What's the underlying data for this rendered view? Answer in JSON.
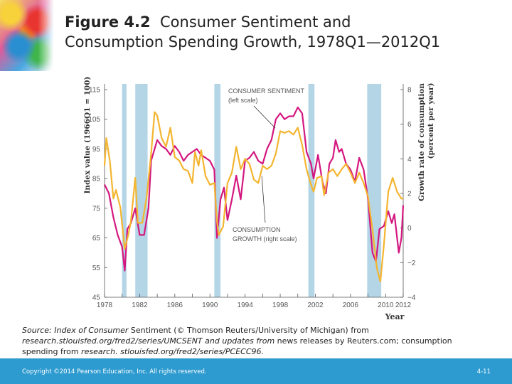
{
  "slide": {
    "title_bold": "Figure 4.2",
    "title_line1": "Consumer Sentiment and",
    "title_line2": "Consumption Spending Growth, 1978Q1—2012Q1"
  },
  "source": {
    "part1": "Source: Index of Consumer",
    "part2": " Sentiment (© Thomson Reuters/University of Michigan) from",
    "part3": "research.stlouisfed.org/fred2/series/UMCSENT and updates from",
    "part4": " news releases by Reuters.com; consumption",
    "part5": "spending from ",
    "part6": "research. stlouisfed.org/fred2/series/PCECC96."
  },
  "footer": {
    "copyright": "Copyright ©2014 Pearson Education, Inc. All rights reserved.",
    "page": "4-11"
  },
  "colors": {
    "sentiment": "#d4177f",
    "consumption": "#f4b530",
    "recession": "#b3d5e6",
    "footer": "#2e9bd0"
  },
  "chart_data": {
    "type": "line",
    "xlabel": "Year",
    "ylabel_left": "Index value (1966Q1 = 100)",
    "ylabel_right_line1": "Growth rate of consumption",
    "ylabel_right_line2": "(percent per year)",
    "xlim": [
      1978,
      2012
    ],
    "ylim_left": [
      45,
      115
    ],
    "ylim_right": [
      -4,
      8
    ],
    "x_ticks": [
      "1978",
      "1982",
      "1986",
      "1990",
      "1994",
      "1998",
      "2002",
      "2006",
      "2010",
      "2012"
    ],
    "y_ticks_left": [
      "115",
      "105",
      "95",
      "85",
      "75",
      "65",
      "55",
      "45"
    ],
    "y_ticks_right": [
      "8",
      "6",
      "4",
      "2",
      "0",
      "−2",
      "−4"
    ],
    "grid": false,
    "recessions": [
      [
        1980.0,
        1980.5
      ],
      [
        1981.5,
        1982.9
      ],
      [
        1990.5,
        1991.2
      ],
      [
        2001.2,
        2001.9
      ],
      [
        2007.9,
        2009.5
      ]
    ],
    "annotations": {
      "sentiment_line1": "CONSUMER SENTIMENT",
      "sentiment_line2": "(left scale)",
      "consumption_line1": "CONSUMPTION",
      "consumption_line2": "GROWTH  (right scale)"
    },
    "series": [
      {
        "name": "CONSUMER SENTIMENT",
        "axis": "left",
        "x": [
          1978,
          1978.5,
          1979,
          1979.5,
          1980,
          1980.3,
          1980.6,
          1981,
          1981.5,
          1982,
          1982.5,
          1983,
          1983.3,
          1984,
          1984.5,
          1985,
          1985.5,
          1986,
          1986.5,
          1987,
          1987.5,
          1988,
          1988.5,
          1989,
          1989.5,
          1990,
          1990.5,
          1990.8,
          1991.2,
          1991.6,
          1992,
          1992.5,
          1993,
          1993.5,
          1994,
          1994.5,
          1995,
          1995.5,
          1996,
          1996.5,
          1997,
          1997.5,
          1998,
          1998.5,
          1999,
          1999.5,
          2000,
          2000.5,
          2001,
          2001.5,
          2001.8,
          2002.3,
          2002.8,
          2003.2,
          2003.6,
          2004,
          2004.3,
          2004.7,
          2005,
          2005.5,
          2006,
          2006.5,
          2007,
          2007.5,
          2008,
          2008.5,
          2008.9,
          2009.3,
          2009.8,
          2010.3,
          2010.7,
          2011,
          2011.5,
          2011.8,
          2012
        ],
        "y": [
          83,
          80,
          72,
          66,
          62,
          54,
          68,
          70,
          75,
          66,
          66,
          75,
          91,
          98,
          96,
          95,
          93,
          96,
          94,
          91,
          93,
          94,
          95,
          93,
          92,
          91,
          88,
          65,
          78,
          82,
          71,
          78,
          86,
          78,
          91,
          92,
          94,
          91,
          90,
          95,
          98,
          105,
          107,
          105,
          106,
          106,
          109,
          107,
          94,
          90,
          85,
          93,
          84,
          80,
          90,
          92,
          98,
          94,
          95,
          90,
          88,
          84,
          92,
          88,
          78,
          60,
          57,
          68,
          69,
          74,
          70,
          73,
          60,
          65,
          76
        ]
      },
      {
        "name": "CONSUMPTION GROWTH",
        "axis": "right",
        "x": [
          1978,
          1978.2,
          1978.6,
          1979,
          1979.3,
          1979.8,
          1980.3,
          1980.7,
          1981,
          1981.5,
          1981.8,
          1982.3,
          1982.8,
          1983.3,
          1983.7,
          1984,
          1984.5,
          1985,
          1985.5,
          1986,
          1986.5,
          1987,
          1987.5,
          1988,
          1988.3,
          1988.7,
          1989,
          1989.5,
          1990,
          1990.5,
          1990.8,
          1991,
          1991.5,
          1992,
          1992.5,
          1993,
          1993.5,
          1994,
          1994.5,
          1995,
          1995.5,
          1996,
          1996.5,
          1997,
          1997.5,
          1998,
          1998.5,
          1999,
          1999.5,
          2000,
          2000.5,
          2001,
          2001.5,
          2001.8,
          2002.2,
          2002.7,
          2003,
          2003.5,
          2004,
          2004.5,
          2005,
          2005.5,
          2006,
          2006.5,
          2007,
          2007.5,
          2008,
          2008.5,
          2009,
          2009.4,
          2009.8,
          2010.3,
          2010.8,
          2011.3,
          2011.8,
          2012
        ],
        "y": [
          3.6,
          5.2,
          3.9,
          1.7,
          2.2,
          1.2,
          -1.2,
          -0.4,
          0.4,
          2.9,
          0.3,
          0.3,
          1.8,
          4.3,
          6.7,
          6.5,
          5.2,
          4.7,
          5.8,
          4.1,
          3.9,
          3.4,
          3.3,
          2.6,
          4.4,
          3.6,
          4.5,
          3.0,
          2.5,
          2.6,
          0.4,
          -0.4,
          0.1,
          2.6,
          3.2,
          4.7,
          3.4,
          4.0,
          3.7,
          2.8,
          2.6,
          3.6,
          3.4,
          3.6,
          4.3,
          5.6,
          5.5,
          5.6,
          5.4,
          5.8,
          4.8,
          3.4,
          2.5,
          2.1,
          2.9,
          3.0,
          1.9,
          3.2,
          3.4,
          3.0,
          3.4,
          3.7,
          3.2,
          2.6,
          3.2,
          2.6,
          1.8,
          -0.1,
          -2.3,
          -3.1,
          -1.0,
          2.1,
          2.9,
          2.1,
          1.7,
          1.7
        ]
      }
    ]
  }
}
